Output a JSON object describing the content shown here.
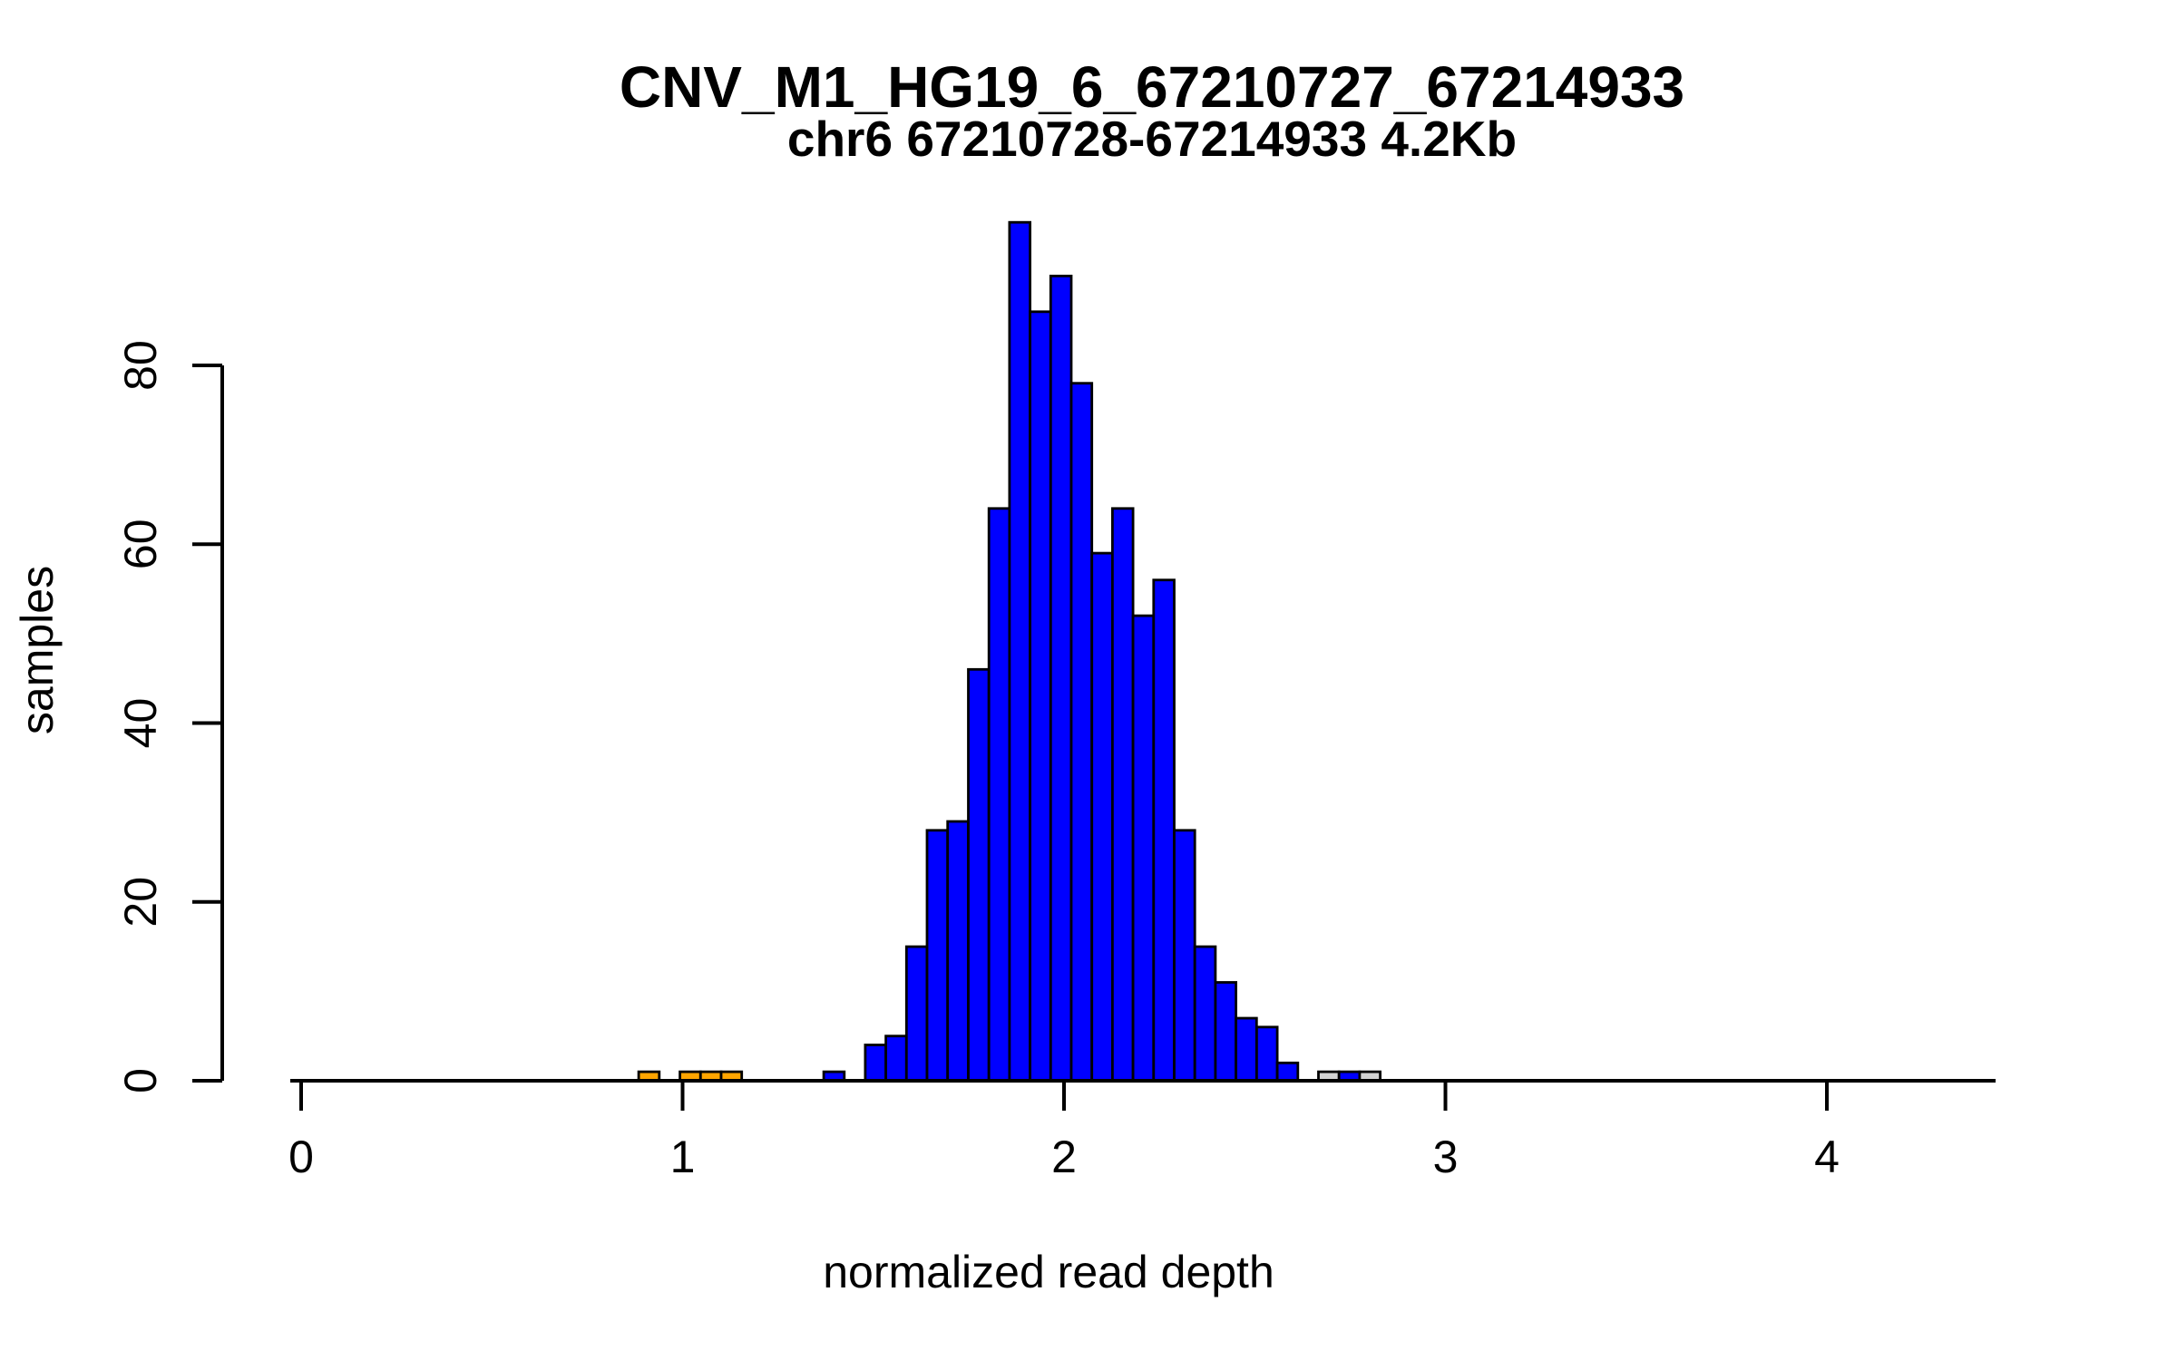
{
  "title": {
    "line1": "CNV_M1_HG19_6_67210727_67214933",
    "line2": "chr6 67210728-67214933 4.2Kb"
  },
  "chart_data": {
    "type": "bar",
    "subtype": "histogram",
    "title": "CNV_M1_HG19_6_67210727_67214933",
    "subtitle": "chr6 67210728-67214933 4.2Kb",
    "xlabel": "normalized read depth",
    "ylabel": "samples",
    "xlim": [
      -0.03,
      4.44
    ],
    "ylim": [
      0,
      96
    ],
    "x_ticks": [
      0,
      1,
      2,
      3,
      4
    ],
    "y_ticks": [
      0,
      20,
      40,
      60,
      80
    ],
    "grid": false,
    "legend_position": "none",
    "bin_width": 0.054,
    "colors": {
      "blue": "#0000FF",
      "orange": "#FFA500",
      "gray": "#D3D3D3",
      "stroke": "#000000"
    },
    "bars": [
      {
        "x": 0.885,
        "count": 1,
        "color": "orange"
      },
      {
        "x": 0.993,
        "count": 1,
        "color": "orange"
      },
      {
        "x": 1.047,
        "count": 1,
        "color": "orange"
      },
      {
        "x": 1.101,
        "count": 1,
        "color": "orange"
      },
      {
        "x": 1.37,
        "count": 1,
        "color": "blue"
      },
      {
        "x": 1.479,
        "count": 4,
        "color": "blue"
      },
      {
        "x": 1.533,
        "count": 5,
        "color": "blue"
      },
      {
        "x": 1.587,
        "count": 15,
        "color": "blue"
      },
      {
        "x": 1.641,
        "count": 28,
        "color": "blue"
      },
      {
        "x": 1.695,
        "count": 29,
        "color": "blue"
      },
      {
        "x": 1.749,
        "count": 46,
        "color": "blue"
      },
      {
        "x": 1.803,
        "count": 64,
        "color": "blue"
      },
      {
        "x": 1.857,
        "count": 96,
        "color": "blue"
      },
      {
        "x": 1.911,
        "count": 86,
        "color": "blue"
      },
      {
        "x": 1.965,
        "count": 90,
        "color": "blue"
      },
      {
        "x": 2.019,
        "count": 78,
        "color": "blue"
      },
      {
        "x": 2.073,
        "count": 59,
        "color": "blue"
      },
      {
        "x": 2.127,
        "count": 64,
        "color": "blue"
      },
      {
        "x": 2.181,
        "count": 52,
        "color": "blue"
      },
      {
        "x": 2.235,
        "count": 56,
        "color": "blue"
      },
      {
        "x": 2.289,
        "count": 28,
        "color": "blue"
      },
      {
        "x": 2.343,
        "count": 15,
        "color": "blue"
      },
      {
        "x": 2.397,
        "count": 11,
        "color": "blue"
      },
      {
        "x": 2.451,
        "count": 7,
        "color": "blue"
      },
      {
        "x": 2.505,
        "count": 6,
        "color": "blue"
      },
      {
        "x": 2.559,
        "count": 2,
        "color": "blue"
      },
      {
        "x": 2.667,
        "count": 1,
        "color": "gray"
      },
      {
        "x": 2.721,
        "count": 1,
        "color": "blue"
      },
      {
        "x": 2.775,
        "count": 1,
        "color": "gray"
      }
    ]
  }
}
